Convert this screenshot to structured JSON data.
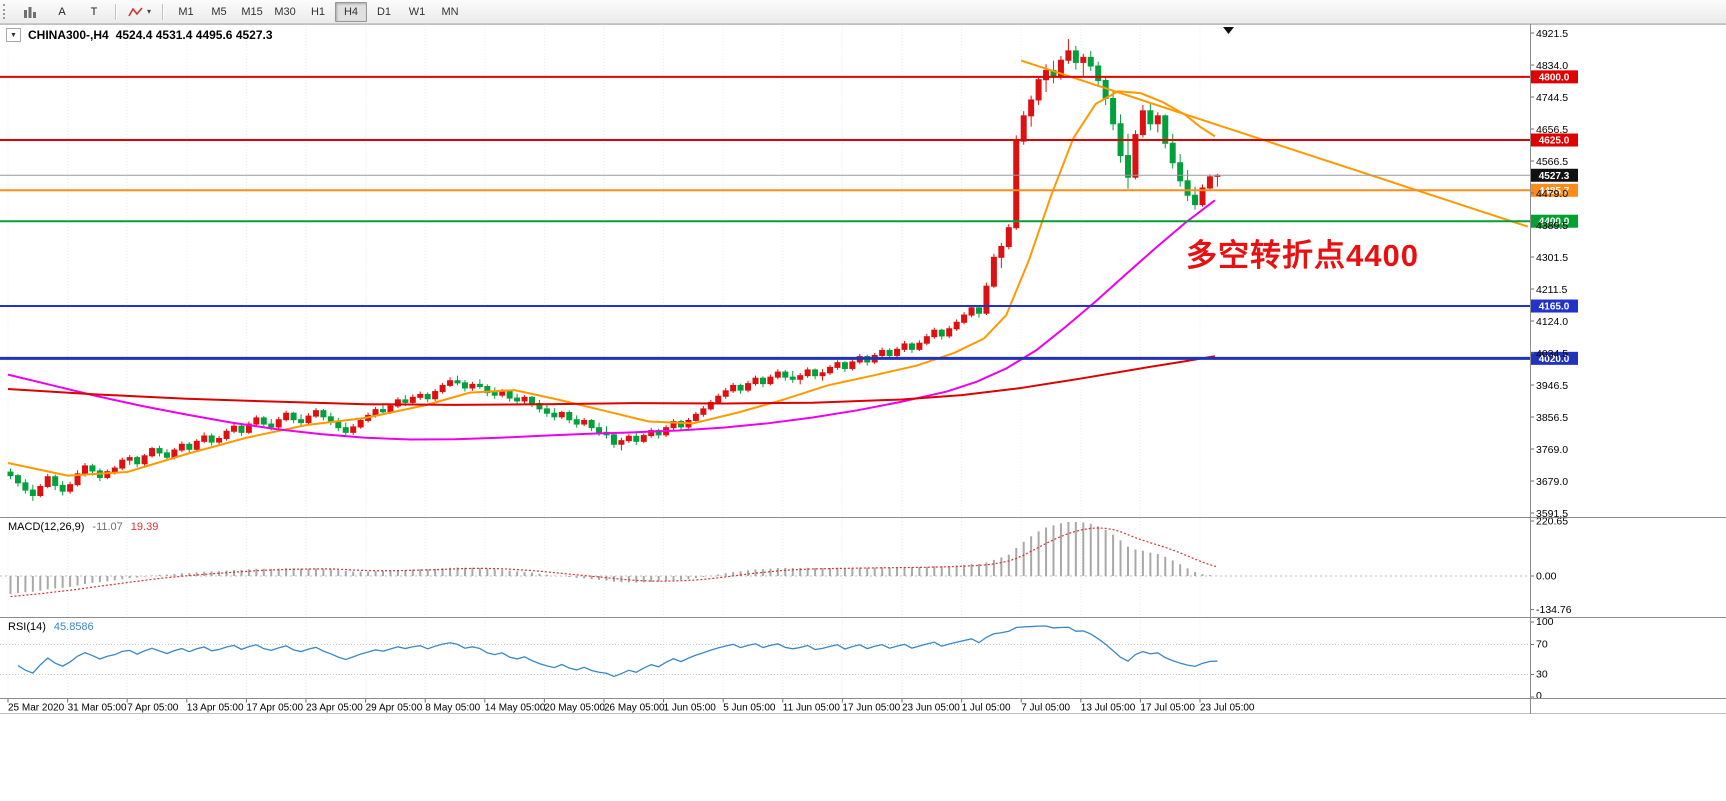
{
  "toolbar": {
    "button_a": "A",
    "button_t": "T",
    "caret_glyph": "▾",
    "timeframes": [
      "M1",
      "M5",
      "M15",
      "M30",
      "H1",
      "H4",
      "D1",
      "W1",
      "MN"
    ],
    "selected_timeframe": "H4"
  },
  "chart": {
    "dropdown_glyph": "▼",
    "title_text": "CHINA300-,H4",
    "ohlc_text": "4524.4 4531.4 4495.6 4527.3"
  },
  "macd_label": {
    "name": "MACD(12,26,9)",
    "main_value": "-11.07",
    "signal_value": "19.39"
  },
  "rsi_label": {
    "name": "RSI(14)",
    "value": "45.8586"
  },
  "annotation": {
    "text": "多空转折点4400",
    "color": "#e81010"
  },
  "chart_data": {
    "type": "candlestick",
    "symbol": "CHINA300-",
    "timeframe": "H4",
    "up_color": "#dd1111",
    "down_color": "#00a03c",
    "price_axis_ticks": [
      "4921.5",
      "4834.0",
      "4744.5",
      "4656.5",
      "4566.5",
      "4479.0",
      "4389.5",
      "4301.5",
      "4211.5",
      "4124.0",
      "4034.5",
      "3946.5",
      "3856.5",
      "3769.0",
      "3679.0",
      "3591.5"
    ],
    "time_axis_ticks": [
      "25 Mar 2020",
      "31 Mar 05:00",
      "7 Apr 05:00",
      "13 Apr 05:00",
      "17 Apr 05:00",
      "23 Apr 05:00",
      "29 Apr 05:00",
      "8 May 05:00",
      "14 May 05:00",
      "20 May 05:00",
      "26 May 05:00",
      "1 Jun 05:00",
      "5 Jun 05:00",
      "11 Jun 05:00",
      "17 Jun 05:00",
      "23 Jun 05:00",
      "1 Jul 05:00",
      "7 Jul 05:00",
      "13 Jul 05:00",
      "17 Jul 05:00",
      "23 Jul 05:00"
    ],
    "horizontal_levels": [
      {
        "price": 4800.0,
        "label": "4800.0",
        "color": "#e00000",
        "thickness": 2
      },
      {
        "price": 4625.0,
        "label": "4625.0",
        "color": "#e00000",
        "thickness": 2
      },
      {
        "price": 4485.7,
        "label": "4485.7",
        "color": "#ff8c1a",
        "thickness": 2
      },
      {
        "price": 4400.0,
        "label": "4400.0",
        "color": "#00a032",
        "thickness": 2
      },
      {
        "price": 4165.0,
        "label": "4165.0",
        "color": "#2233cc",
        "thickness": 2
      },
      {
        "price": 4020.0,
        "label": "4020.0",
        "color": "#2233bb",
        "thickness": 3
      }
    ],
    "current_price": {
      "price": 4527.3,
      "label": "4527.3",
      "line_color": "#9a9a9a",
      "badge_color": "#111111"
    },
    "trendline": {
      "color": "#ff9900",
      "points": [
        [
          136,
          4845
        ],
        [
          204,
          4385
        ]
      ]
    },
    "moving_averages": [
      {
        "name": "fast-ma",
        "color": "#ff9900",
        "points": [
          [
            0,
            3730
          ],
          [
            8,
            3695
          ],
          [
            16,
            3705
          ],
          [
            24,
            3755
          ],
          [
            32,
            3800
          ],
          [
            40,
            3835
          ],
          [
            48,
            3855
          ],
          [
            56,
            3890
          ],
          [
            62,
            3925
          ],
          [
            68,
            3932
          ],
          [
            74,
            3905
          ],
          [
            80,
            3875
          ],
          [
            86,
            3845
          ],
          [
            92,
            3840
          ],
          [
            98,
            3870
          ],
          [
            104,
            3905
          ],
          [
            110,
            3945
          ],
          [
            116,
            3972
          ],
          [
            122,
            4000
          ],
          [
            127,
            4035
          ],
          [
            131,
            4075
          ],
          [
            134,
            4140
          ],
          [
            137,
            4290
          ],
          [
            140,
            4470
          ],
          [
            143,
            4630
          ],
          [
            146,
            4725
          ],
          [
            149,
            4760
          ],
          [
            152,
            4755
          ],
          [
            155,
            4730
          ],
          [
            158,
            4695
          ],
          [
            160,
            4662
          ],
          [
            162,
            4635
          ]
        ]
      },
      {
        "name": "medium-ma",
        "color": "#ee00ee",
        "points": [
          [
            0,
            3975
          ],
          [
            6,
            3945
          ],
          [
            12,
            3915
          ],
          [
            18,
            3888
          ],
          [
            24,
            3864
          ],
          [
            30,
            3842
          ],
          [
            36,
            3824
          ],
          [
            42,
            3810
          ],
          [
            48,
            3800
          ],
          [
            54,
            3795
          ],
          [
            60,
            3796
          ],
          [
            66,
            3800
          ],
          [
            72,
            3806
          ],
          [
            78,
            3811
          ],
          [
            84,
            3815
          ],
          [
            90,
            3820
          ],
          [
            96,
            3828
          ],
          [
            102,
            3840
          ],
          [
            108,
            3856
          ],
          [
            114,
            3876
          ],
          [
            120,
            3900
          ],
          [
            126,
            3928
          ],
          [
            130,
            3955
          ],
          [
            134,
            3992
          ],
          [
            138,
            4042
          ],
          [
            142,
            4108
          ],
          [
            146,
            4178
          ],
          [
            150,
            4252
          ],
          [
            154,
            4325
          ],
          [
            158,
            4395
          ],
          [
            162,
            4458
          ]
        ]
      },
      {
        "name": "slow-ma",
        "color": "#dd0000",
        "points": [
          [
            0,
            3935
          ],
          [
            12,
            3920
          ],
          [
            24,
            3908
          ],
          [
            36,
            3900
          ],
          [
            48,
            3893
          ],
          [
            60,
            3891
          ],
          [
            72,
            3893
          ],
          [
            84,
            3896
          ],
          [
            96,
            3895
          ],
          [
            108,
            3897
          ],
          [
            120,
            3906
          ],
          [
            128,
            3918
          ],
          [
            136,
            3938
          ],
          [
            144,
            3964
          ],
          [
            152,
            3992
          ],
          [
            158,
            4012
          ],
          [
            162,
            4026
          ]
        ]
      }
    ],
    "macd": {
      "axis": [
        "220.65",
        "0.00",
        "-134.76"
      ],
      "histogram_color": "#a8a8a8",
      "signal_color": "#d83030"
    },
    "rsi": {
      "axis": [
        "100",
        "70",
        "30",
        "0"
      ],
      "line_color": "#3a87c8",
      "overbought": 70,
      "oversold": 30
    },
    "candles_ohlc": [
      [
        3705,
        3715,
        3685,
        3695
      ],
      [
        3695,
        3700,
        3665,
        3675
      ],
      [
        3675,
        3685,
        3645,
        3655
      ],
      [
        3655,
        3670,
        3625,
        3640
      ],
      [
        3640,
        3672,
        3635,
        3665
      ],
      [
        3665,
        3700,
        3660,
        3692
      ],
      [
        3692,
        3698,
        3655,
        3668
      ],
      [
        3668,
        3680,
        3640,
        3652
      ],
      [
        3652,
        3678,
        3645,
        3670
      ],
      [
        3670,
        3710,
        3665,
        3700
      ],
      [
        3700,
        3730,
        3692,
        3722
      ],
      [
        3722,
        3728,
        3695,
        3708
      ],
      [
        3708,
        3715,
        3680,
        3690
      ],
      [
        3690,
        3712,
        3685,
        3706
      ],
      [
        3706,
        3722,
        3698,
        3716
      ],
      [
        3716,
        3745,
        3710,
        3738
      ],
      [
        3738,
        3752,
        3725,
        3745
      ],
      [
        3745,
        3750,
        3718,
        3728
      ],
      [
        3728,
        3755,
        3722,
        3750
      ],
      [
        3750,
        3775,
        3745,
        3770
      ],
      [
        3770,
        3778,
        3748,
        3758
      ],
      [
        3758,
        3768,
        3738,
        3746
      ],
      [
        3746,
        3772,
        3740,
        3766
      ],
      [
        3766,
        3790,
        3760,
        3782
      ],
      [
        3782,
        3788,
        3758,
        3768
      ],
      [
        3768,
        3796,
        3762,
        3790
      ],
      [
        3790,
        3815,
        3785,
        3805
      ],
      [
        3805,
        3812,
        3778,
        3788
      ],
      [
        3788,
        3805,
        3780,
        3798
      ],
      [
        3798,
        3825,
        3792,
        3818
      ],
      [
        3818,
        3840,
        3812,
        3832
      ],
      [
        3832,
        3838,
        3805,
        3815
      ],
      [
        3815,
        3845,
        3810,
        3838
      ],
      [
        3838,
        3862,
        3832,
        3855
      ],
      [
        3855,
        3860,
        3828,
        3838
      ],
      [
        3838,
        3852,
        3820,
        3830
      ],
      [
        3830,
        3858,
        3825,
        3850
      ],
      [
        3850,
        3875,
        3845,
        3868
      ],
      [
        3868,
        3872,
        3840,
        3850
      ],
      [
        3850,
        3865,
        3832,
        3842
      ],
      [
        3842,
        3868,
        3838,
        3860
      ],
      [
        3860,
        3882,
        3855,
        3875
      ],
      [
        3875,
        3880,
        3848,
        3858
      ],
      [
        3858,
        3870,
        3835,
        3845
      ],
      [
        3845,
        3855,
        3818,
        3828
      ],
      [
        3828,
        3842,
        3805,
        3815
      ],
      [
        3815,
        3838,
        3808,
        3830
      ],
      [
        3830,
        3855,
        3825,
        3848
      ],
      [
        3848,
        3870,
        3842,
        3862
      ],
      [
        3862,
        3885,
        3856,
        3878
      ],
      [
        3878,
        3892,
        3865,
        3872
      ],
      [
        3872,
        3895,
        3866,
        3888
      ],
      [
        3888,
        3912,
        3882,
        3905
      ],
      [
        3905,
        3918,
        3888,
        3898
      ],
      [
        3898,
        3920,
        3892,
        3912
      ],
      [
        3912,
        3928,
        3905,
        3920
      ],
      [
        3920,
        3926,
        3898,
        3908
      ],
      [
        3908,
        3935,
        3902,
        3928
      ],
      [
        3928,
        3952,
        3922,
        3945
      ],
      [
        3945,
        3968,
        3940,
        3958
      ],
      [
        3958,
        3972,
        3945,
        3952
      ],
      [
        3952,
        3960,
        3928,
        3938
      ],
      [
        3938,
        3955,
        3930,
        3948
      ],
      [
        3948,
        3962,
        3935,
        3942
      ],
      [
        3942,
        3948,
        3915,
        3925
      ],
      [
        3925,
        3940,
        3908,
        3918
      ],
      [
        3918,
        3935,
        3912,
        3928
      ],
      [
        3928,
        3932,
        3900,
        3910
      ],
      [
        3910,
        3922,
        3892,
        3902
      ],
      [
        3902,
        3918,
        3895,
        3912
      ],
      [
        3912,
        3916,
        3885,
        3895
      ],
      [
        3895,
        3905,
        3870,
        3880
      ],
      [
        3880,
        3892,
        3858,
        3868
      ],
      [
        3868,
        3882,
        3848,
        3858
      ],
      [
        3858,
        3875,
        3852,
        3870
      ],
      [
        3870,
        3876,
        3840,
        3850
      ],
      [
        3850,
        3862,
        3828,
        3838
      ],
      [
        3838,
        3855,
        3832,
        3848
      ],
      [
        3848,
        3852,
        3818,
        3828
      ],
      [
        3828,
        3842,
        3805,
        3815
      ],
      [
        3815,
        3832,
        3798,
        3808
      ],
      [
        3808,
        3815,
        3772,
        3782
      ],
      [
        3782,
        3800,
        3765,
        3792
      ],
      [
        3792,
        3810,
        3786,
        3804
      ],
      [
        3804,
        3818,
        3780,
        3790
      ],
      [
        3790,
        3812,
        3785,
        3806
      ],
      [
        3806,
        3828,
        3800,
        3820
      ],
      [
        3820,
        3825,
        3798,
        3808
      ],
      [
        3808,
        3835,
        3802,
        3828
      ],
      [
        3828,
        3852,
        3822,
        3845
      ],
      [
        3845,
        3850,
        3820,
        3830
      ],
      [
        3830,
        3855,
        3825,
        3848
      ],
      [
        3848,
        3872,
        3842,
        3865
      ],
      [
        3865,
        3888,
        3858,
        3880
      ],
      [
        3880,
        3905,
        3875,
        3898
      ],
      [
        3898,
        3922,
        3892,
        3915
      ],
      [
        3915,
        3938,
        3908,
        3930
      ],
      [
        3930,
        3952,
        3924,
        3945
      ],
      [
        3945,
        3950,
        3922,
        3932
      ],
      [
        3932,
        3958,
        3926,
        3950
      ],
      [
        3950,
        3972,
        3944,
        3965
      ],
      [
        3965,
        3970,
        3940,
        3950
      ],
      [
        3950,
        3975,
        3945,
        3968
      ],
      [
        3968,
        3990,
        3962,
        3982
      ],
      [
        3982,
        3988,
        3958,
        3968
      ],
      [
        3968,
        3985,
        3952,
        3962
      ],
      [
        3962,
        3980,
        3948,
        3972
      ],
      [
        3972,
        3995,
        3966,
        3988
      ],
      [
        3988,
        3992,
        3962,
        3972
      ],
      [
        3972,
        3990,
        3958,
        3980
      ],
      [
        3980,
        4002,
        3974,
        3995
      ],
      [
        3995,
        4015,
        3988,
        4008
      ],
      [
        4008,
        4012,
        3982,
        3992
      ],
      [
        3992,
        4018,
        3986,
        4010
      ],
      [
        4010,
        4032,
        4004,
        4025
      ],
      [
        4025,
        4030,
        4000,
        4010
      ],
      [
        4010,
        4035,
        4004,
        4028
      ],
      [
        4028,
        4050,
        4022,
        4042
      ],
      [
        4042,
        4048,
        4018,
        4028
      ],
      [
        4028,
        4052,
        4022,
        4045
      ],
      [
        4045,
        4068,
        4038,
        4060
      ],
      [
        4060,
        4065,
        4035,
        4045
      ],
      [
        4045,
        4070,
        4040,
        4062
      ],
      [
        4062,
        4088,
        4056,
        4080
      ],
      [
        4080,
        4105,
        4074,
        4098
      ],
      [
        4098,
        4102,
        4072,
        4082
      ],
      [
        4082,
        4110,
        4076,
        4102
      ],
      [
        4102,
        4128,
        4096,
        4120
      ],
      [
        4120,
        4148,
        4114,
        4140
      ],
      [
        4140,
        4168,
        4134,
        4160
      ],
      [
        4160,
        4165,
        4132,
        4145
      ],
      [
        4145,
        4230,
        4140,
        4220
      ],
      [
        4220,
        4310,
        4215,
        4300
      ],
      [
        4300,
        4340,
        4270,
        4330
      ],
      [
        4330,
        4392,
        4322,
        4382
      ],
      [
        4382,
        4638,
        4376,
        4622
      ],
      [
        4622,
        4705,
        4612,
        4692
      ],
      [
        4692,
        4748,
        4662,
        4736
      ],
      [
        4736,
        4802,
        4722,
        4792
      ],
      [
        4792,
        4835,
        4758,
        4818
      ],
      [
        4818,
        4845,
        4782,
        4802
      ],
      [
        4802,
        4858,
        4792,
        4846
      ],
      [
        4846,
        4905,
        4836,
        4872
      ],
      [
        4872,
        4886,
        4820,
        4840
      ],
      [
        4840,
        4864,
        4802,
        4854
      ],
      [
        4854,
        4872,
        4816,
        4830
      ],
      [
        4830,
        4842,
        4772,
        4790
      ],
      [
        4790,
        4802,
        4722,
        4740
      ],
      [
        4740,
        4762,
        4652,
        4670
      ],
      [
        4670,
        4696,
        4562,
        4582
      ],
      [
        4582,
        4642,
        4490,
        4522
      ],
      [
        4522,
        4652,
        4516,
        4640
      ],
      [
        4640,
        4722,
        4632,
        4706
      ],
      [
        4706,
        4726,
        4652,
        4670
      ],
      [
        4670,
        4702,
        4646,
        4692
      ],
      [
        4692,
        4696,
        4602,
        4616
      ],
      [
        4616,
        4642,
        4546,
        4562
      ],
      [
        4562,
        4586,
        4496,
        4512
      ],
      [
        4512,
        4542,
        4456,
        4472
      ],
      [
        4472,
        4496,
        4432,
        4446
      ],
      [
        4446,
        4502,
        4440,
        4492
      ],
      [
        4492,
        4530,
        4484,
        4523
      ],
      [
        4524.4,
        4531.4,
        4495.6,
        4527.3
      ]
    ]
  }
}
